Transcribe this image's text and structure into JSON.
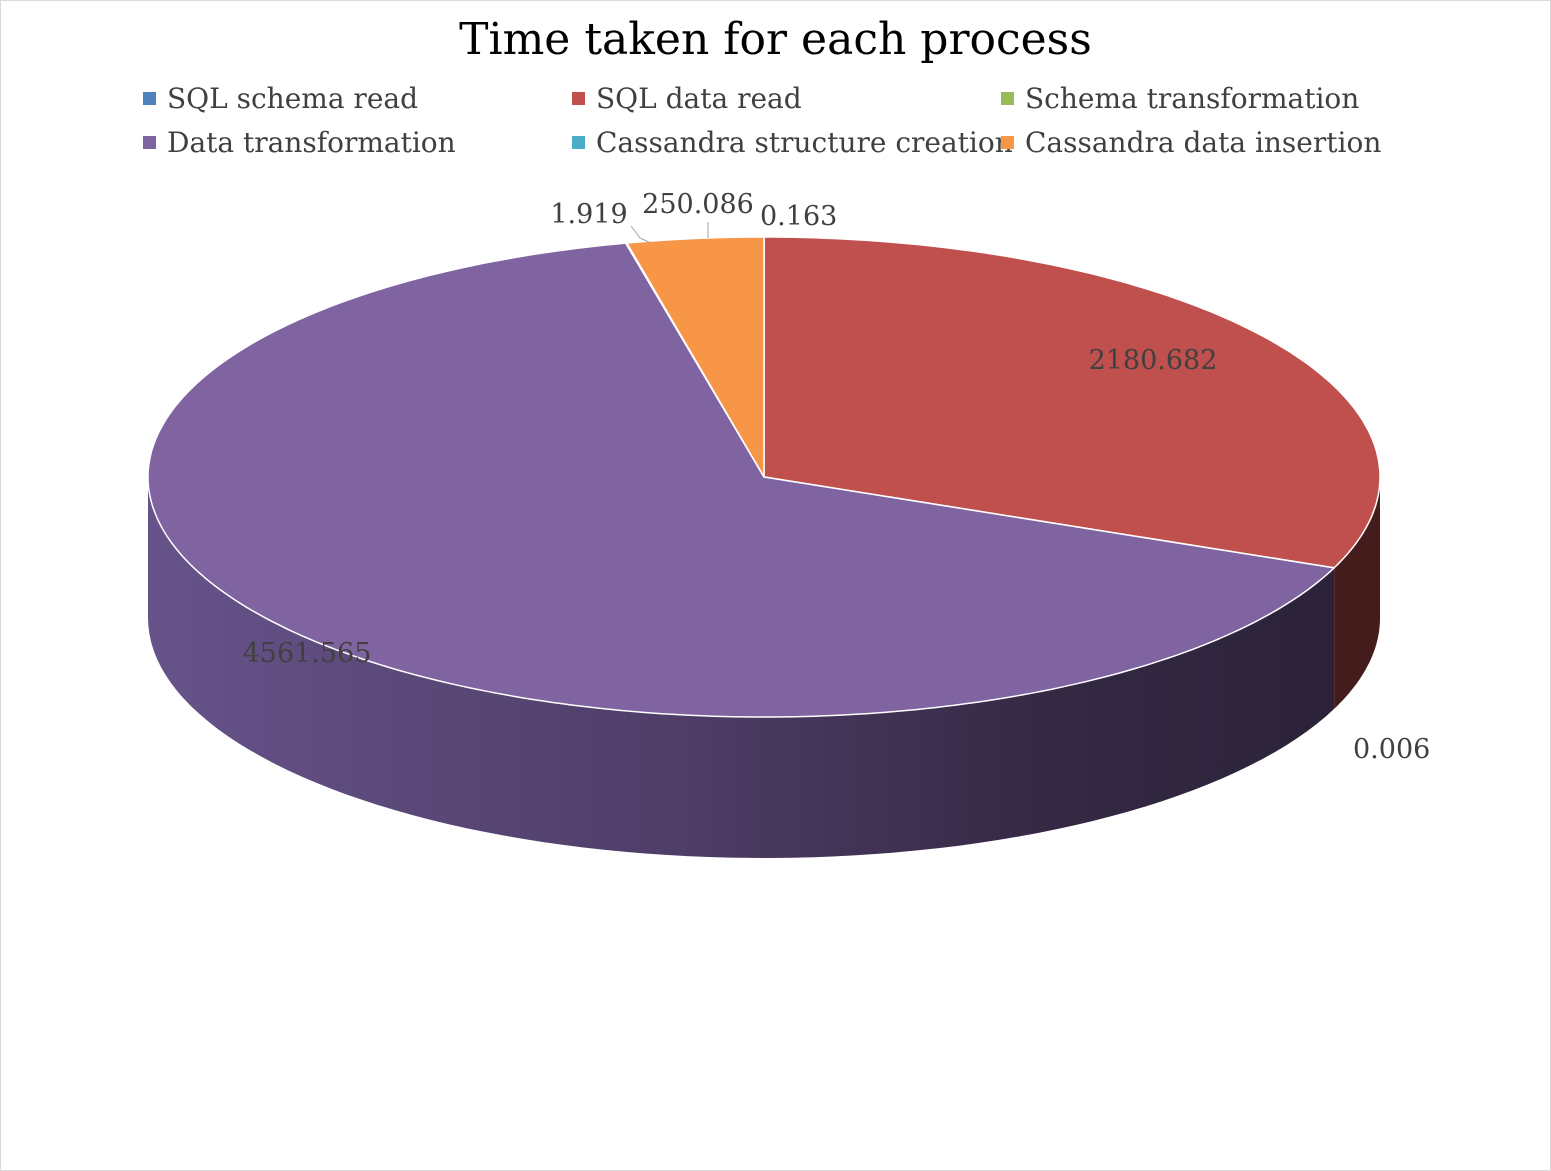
{
  "chart_data": {
    "type": "pie",
    "title": "Time taken for each process",
    "categories": [
      "SQL schema read",
      "SQL data read",
      "Schema transformation",
      "Data transformation",
      "Cassandra structure creation",
      "Cassandra data insertion"
    ],
    "values": [
      0.163,
      2180.682,
      0.006,
      4561.565,
      1.919,
      250.086
    ],
    "data_labels": [
      "0.163",
      "2180.682",
      "0.006",
      "4561.565",
      "1.919",
      "250.086"
    ],
    "colors": [
      "#4f81bd",
      "#c0504d",
      "#9bbb59",
      "#8064a2",
      "#4bacc6",
      "#f79646"
    ],
    "legend_position": "top",
    "style": "3d"
  }
}
